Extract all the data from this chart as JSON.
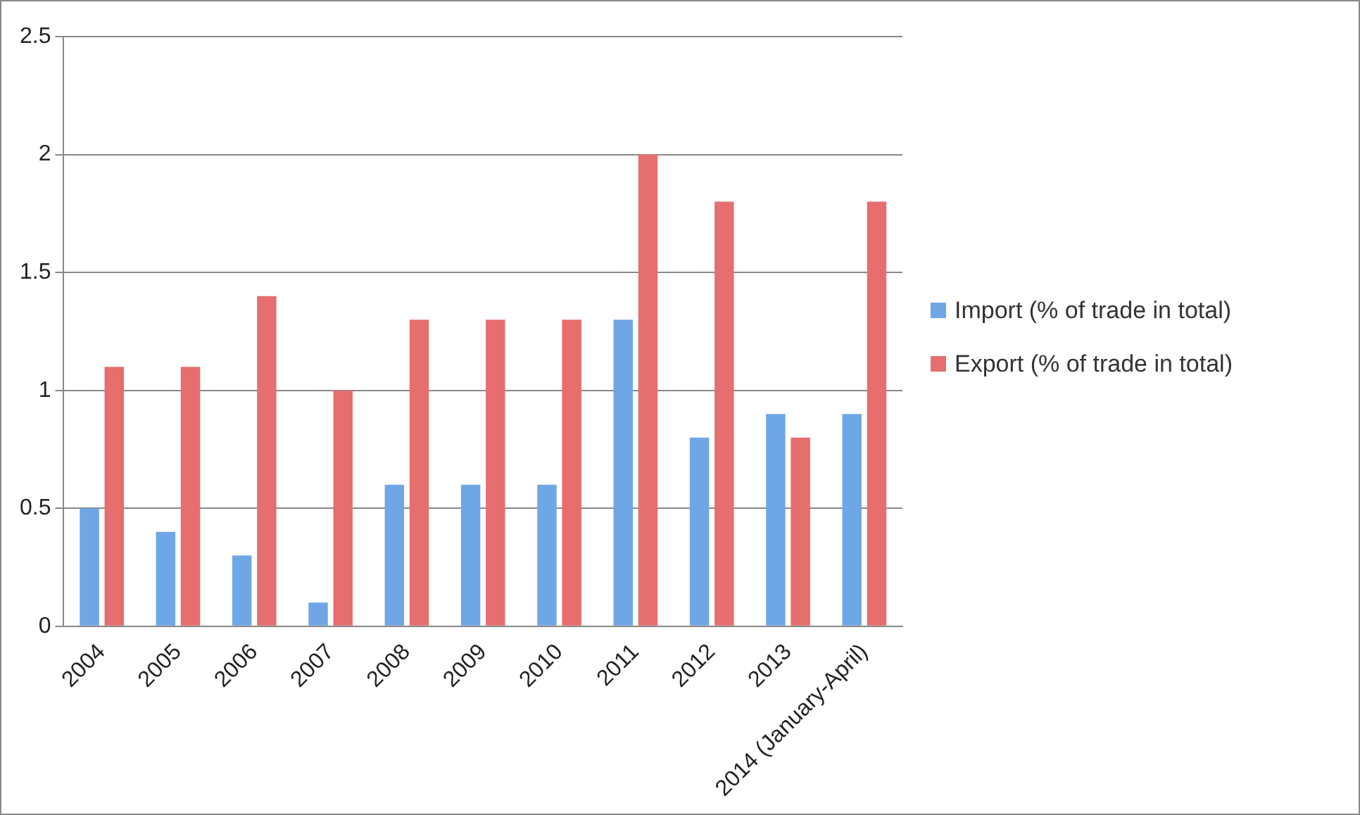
{
  "chart_data": {
    "type": "bar",
    "categories": [
      "2004",
      "2005",
      "2006",
      "2007",
      "2008",
      "2009",
      "2010",
      "2011",
      "2012",
      "2013",
      "2014 (January-April)"
    ],
    "series": [
      {
        "name": "Import (% of trade in total)",
        "color": "#6fa6e6",
        "values": [
          0.5,
          0.4,
          0.3,
          0.1,
          0.6,
          0.6,
          0.6,
          1.3,
          0.8,
          0.9,
          0.9
        ]
      },
      {
        "name": "Export (% of trade in total)",
        "color": "#e66e6e",
        "values": [
          1.1,
          1.1,
          1.4,
          1.0,
          1.3,
          1.3,
          1.3,
          2.0,
          1.8,
          0.8,
          1.8
        ]
      }
    ],
    "ylim": [
      0,
      2.5
    ],
    "yticks": [
      0,
      0.5,
      1,
      1.5,
      2,
      2.5
    ],
    "grid": "y",
    "legend": "right"
  }
}
